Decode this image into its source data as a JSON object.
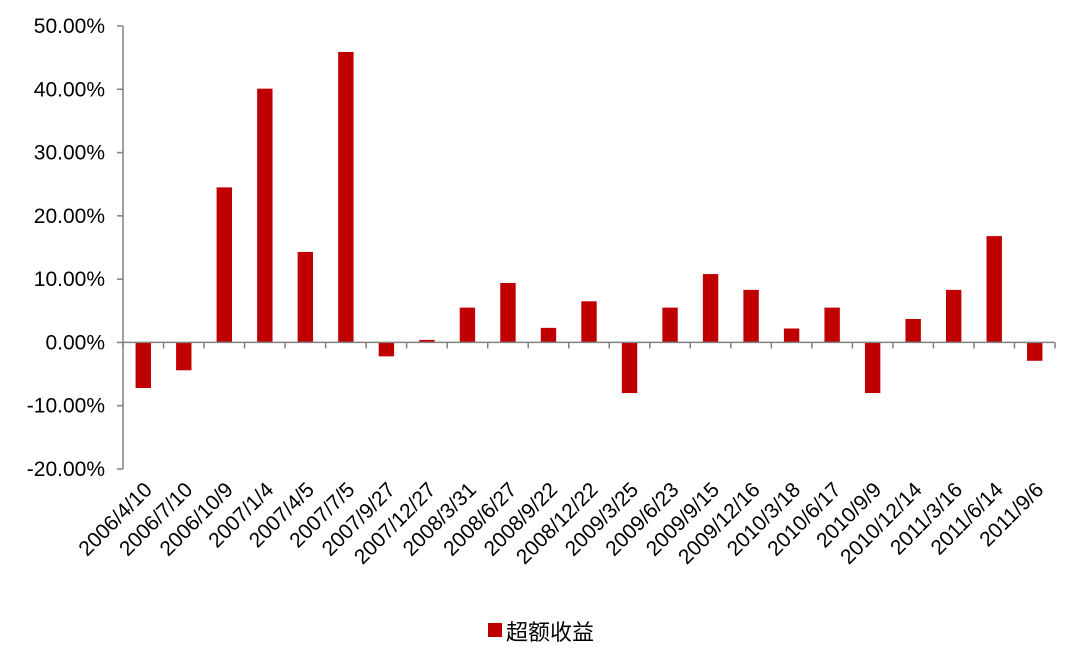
{
  "chart_data": {
    "type": "bar",
    "categories": [
      "2006/4/10",
      "2006/7/10",
      "2006/10/9",
      "2007/1/4",
      "2007/4/5",
      "2007/7/5",
      "2007/9/27",
      "2007/12/27",
      "2008/3/31",
      "2008/6/27",
      "2008/9/22",
      "2008/12/22",
      "2009/3/25",
      "2009/6/23",
      "2009/9/15",
      "2009/12/16",
      "2010/3/18",
      "2010/6/17",
      "2010/9/9",
      "2010/12/14",
      "2011/3/16",
      "2011/6/14",
      "2011/9/6"
    ],
    "series": [
      {
        "name": "超额收益",
        "color": "#c00000",
        "values": [
          -7.2,
          -4.4,
          24.5,
          40.1,
          14.3,
          45.9,
          -2.2,
          0.4,
          5.5,
          9.4,
          2.3,
          6.5,
          -8.0,
          5.5,
          10.8,
          8.3,
          2.2,
          5.5,
          -8.0,
          3.7,
          8.3,
          16.8,
          -2.9
        ]
      }
    ],
    "title": "",
    "xlabel": "",
    "ylabel": "",
    "ylim": [
      -20,
      50
    ],
    "yticks": [
      50,
      40,
      30,
      20,
      10,
      0,
      -10,
      -20
    ],
    "ytick_labels": [
      "50.00%",
      "40.00%",
      "30.00%",
      "20.00%",
      "10.00%",
      "0.00%",
      "-10.00%",
      "-20.00%"
    ],
    "grid": false,
    "legend_position": "bottom"
  }
}
